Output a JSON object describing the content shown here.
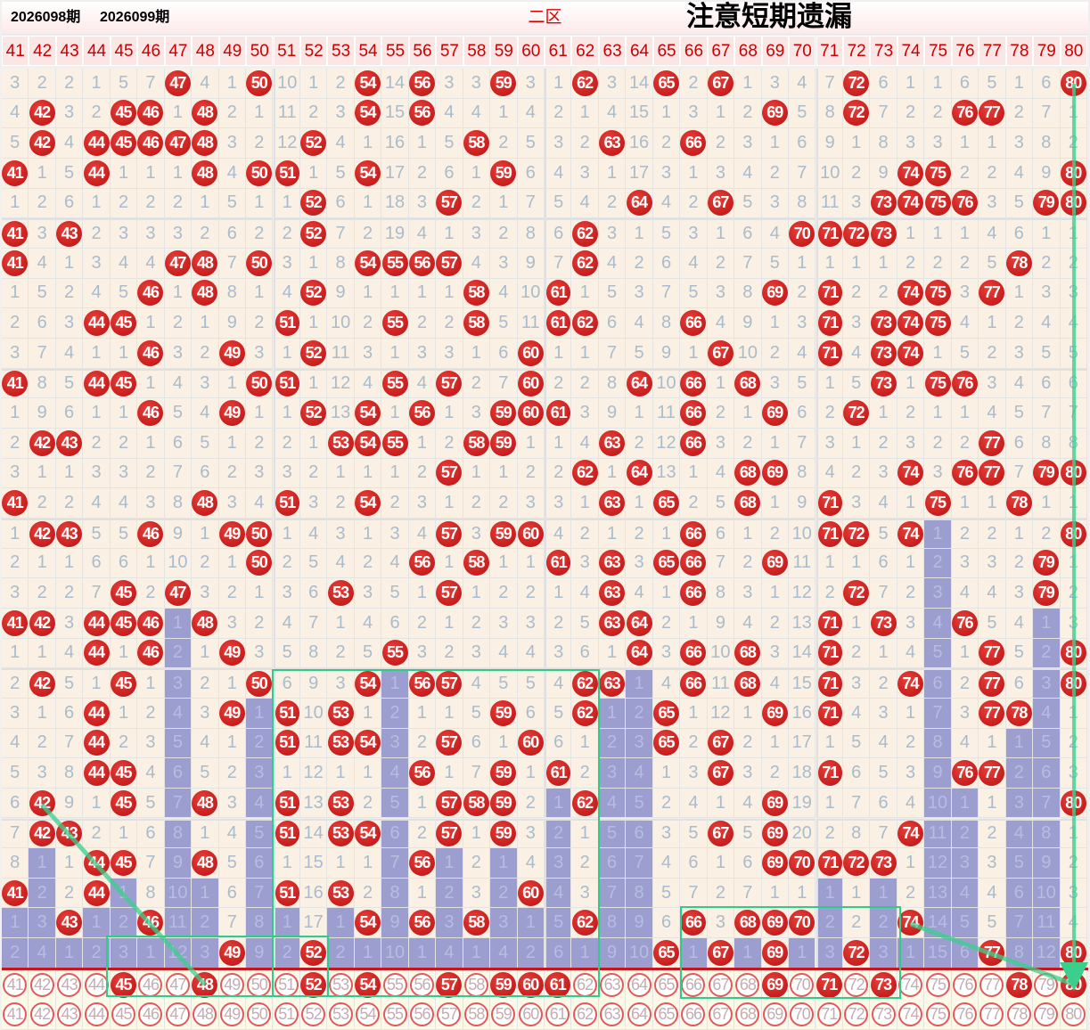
{
  "title": "二区",
  "columns": [
    41,
    42,
    43,
    44,
    45,
    46,
    47,
    48,
    49,
    50,
    51,
    52,
    53,
    54,
    55,
    56,
    57,
    58,
    59,
    60,
    61,
    62,
    63,
    64,
    65,
    66,
    67,
    68,
    69,
    70,
    71,
    72,
    73,
    74,
    75,
    76,
    77,
    78,
    79,
    80
  ],
  "colors": {
    "hit": "#d92b2b",
    "miss_text": "#a9bccd",
    "streak": "#9c9ecf",
    "cell_bg": "#faf0e3",
    "overlay": "#2ecc8a",
    "divider": "#c8161d"
  },
  "rows": [
    [
      3,
      2,
      2,
      1,
      5,
      7,
      47,
      4,
      1,
      50,
      10,
      1,
      2,
      54,
      14,
      56,
      3,
      3,
      59,
      3,
      1,
      62,
      3,
      14,
      65,
      2,
      67,
      1,
      3,
      4,
      7,
      72,
      6,
      1,
      1,
      6,
      5,
      1,
      6,
      80
    ],
    [
      4,
      42,
      3,
      2,
      45,
      46,
      1,
      48,
      2,
      1,
      11,
      2,
      3,
      54,
      15,
      56,
      4,
      4,
      1,
      4,
      2,
      1,
      4,
      15,
      1,
      3,
      1,
      2,
      69,
      5,
      8,
      72,
      7,
      2,
      2,
      76,
      77,
      2,
      7,
      1
    ],
    [
      5,
      42,
      4,
      44,
      45,
      46,
      47,
      48,
      3,
      2,
      12,
      52,
      4,
      1,
      16,
      1,
      5,
      58,
      2,
      5,
      3,
      2,
      63,
      16,
      2,
      66,
      2,
      3,
      1,
      6,
      9,
      1,
      8,
      3,
      3,
      1,
      1,
      3,
      8,
      2
    ],
    [
      41,
      1,
      5,
      44,
      1,
      1,
      1,
      48,
      4,
      50,
      51,
      1,
      5,
      54,
      17,
      2,
      6,
      1,
      59,
      6,
      4,
      3,
      1,
      17,
      3,
      1,
      3,
      4,
      2,
      7,
      10,
      2,
      9,
      74,
      75,
      2,
      2,
      4,
      9,
      80
    ],
    [
      1,
      2,
      6,
      1,
      2,
      2,
      2,
      1,
      5,
      1,
      1,
      52,
      6,
      1,
      18,
      3,
      57,
      2,
      1,
      7,
      5,
      4,
      2,
      64,
      4,
      2,
      67,
      5,
      3,
      8,
      11,
      3,
      73,
      74,
      75,
      76,
      3,
      5,
      79,
      80
    ],
    [
      41,
      3,
      43,
      2,
      3,
      3,
      3,
      2,
      6,
      2,
      2,
      52,
      7,
      2,
      19,
      4,
      1,
      3,
      2,
      8,
      6,
      62,
      3,
      1,
      5,
      3,
      1,
      6,
      4,
      70,
      71,
      72,
      73,
      1,
      1,
      1,
      4,
      6,
      1,
      1
    ],
    [
      41,
      4,
      1,
      3,
      4,
      4,
      47,
      48,
      7,
      50,
      3,
      1,
      8,
      54,
      55,
      56,
      57,
      4,
      3,
      9,
      7,
      62,
      4,
      2,
      6,
      4,
      2,
      7,
      5,
      1,
      1,
      1,
      1,
      2,
      2,
      2,
      5,
      78,
      2,
      2
    ],
    [
      1,
      5,
      2,
      4,
      5,
      46,
      1,
      48,
      8,
      1,
      4,
      52,
      9,
      1,
      1,
      1,
      1,
      58,
      4,
      10,
      61,
      1,
      5,
      3,
      7,
      5,
      3,
      8,
      69,
      2,
      71,
      2,
      2,
      74,
      75,
      3,
      77,
      1,
      3,
      3
    ],
    [
      2,
      6,
      3,
      44,
      45,
      1,
      2,
      1,
      9,
      2,
      51,
      1,
      10,
      2,
      55,
      2,
      2,
      58,
      5,
      11,
      61,
      62,
      6,
      4,
      8,
      66,
      4,
      9,
      1,
      3,
      71,
      3,
      73,
      74,
      75,
      4,
      1,
      2,
      4,
      4
    ],
    [
      3,
      7,
      4,
      1,
      1,
      46,
      3,
      2,
      49,
      3,
      1,
      52,
      11,
      3,
      1,
      3,
      3,
      1,
      6,
      60,
      1,
      1,
      7,
      5,
      9,
      1,
      67,
      10,
      2,
      4,
      71,
      4,
      73,
      74,
      1,
      5,
      2,
      3,
      5,
      5
    ],
    [
      41,
      8,
      5,
      44,
      45,
      1,
      4,
      3,
      1,
      50,
      51,
      1,
      12,
      4,
      55,
      4,
      57,
      2,
      7,
      60,
      2,
      2,
      8,
      64,
      10,
      66,
      1,
      68,
      3,
      5,
      1,
      5,
      73,
      1,
      75,
      76,
      3,
      4,
      6,
      6
    ],
    [
      1,
      9,
      6,
      1,
      1,
      46,
      5,
      4,
      49,
      1,
      1,
      52,
      13,
      54,
      1,
      56,
      1,
      3,
      59,
      60,
      61,
      3,
      9,
      1,
      11,
      66,
      2,
      1,
      69,
      6,
      2,
      72,
      1,
      2,
      1,
      1,
      4,
      5,
      7,
      7
    ],
    [
      2,
      42,
      43,
      2,
      2,
      1,
      6,
      5,
      1,
      2,
      2,
      1,
      53,
      54,
      55,
      1,
      2,
      58,
      59,
      1,
      1,
      4,
      63,
      2,
      12,
      66,
      3,
      2,
      1,
      7,
      3,
      1,
      2,
      3,
      2,
      2,
      77,
      6,
      8,
      8
    ],
    [
      3,
      1,
      1,
      3,
      3,
      2,
      7,
      6,
      2,
      3,
      3,
      2,
      1,
      1,
      1,
      2,
      57,
      1,
      1,
      2,
      2,
      62,
      1,
      64,
      13,
      1,
      4,
      68,
      69,
      8,
      4,
      2,
      3,
      74,
      3,
      76,
      77,
      7,
      79,
      80
    ],
    [
      41,
      2,
      2,
      4,
      4,
      3,
      8,
      48,
      3,
      4,
      51,
      3,
      2,
      54,
      2,
      3,
      1,
      2,
      2,
      3,
      3,
      1,
      63,
      1,
      65,
      2,
      5,
      68,
      1,
      9,
      71,
      3,
      4,
      1,
      75,
      1,
      1,
      78,
      1,
      1
    ],
    [
      1,
      42,
      43,
      5,
      5,
      46,
      9,
      1,
      49,
      50,
      1,
      4,
      3,
      1,
      3,
      4,
      57,
      3,
      59,
      60,
      4,
      2,
      1,
      2,
      1,
      66,
      6,
      1,
      2,
      10,
      71,
      72,
      5,
      74,
      1,
      2,
      2,
      1,
      2,
      80
    ],
    [
      2,
      1,
      1,
      6,
      6,
      1,
      10,
      2,
      1,
      50,
      2,
      5,
      4,
      2,
      4,
      56,
      1,
      58,
      1,
      1,
      61,
      3,
      63,
      3,
      65,
      66,
      7,
      2,
      69,
      11,
      1,
      1,
      6,
      1,
      2,
      3,
      3,
      2,
      79,
      1
    ],
    [
      3,
      2,
      2,
      7,
      45,
      2,
      47,
      3,
      2,
      1,
      3,
      6,
      53,
      3,
      5,
      1,
      57,
      1,
      2,
      2,
      1,
      4,
      63,
      4,
      1,
      66,
      8,
      3,
      1,
      12,
      2,
      72,
      7,
      2,
      3,
      4,
      4,
      3,
      79,
      2
    ],
    [
      41,
      42,
      3,
      44,
      45,
      46,
      1,
      48,
      3,
      2,
      4,
      7,
      1,
      4,
      6,
      2,
      1,
      2,
      3,
      3,
      2,
      5,
      63,
      64,
      2,
      1,
      9,
      4,
      2,
      13,
      71,
      1,
      73,
      3,
      4,
      76,
      5,
      4,
      1,
      3
    ],
    [
      1,
      1,
      4,
      44,
      1,
      46,
      2,
      1,
      49,
      3,
      5,
      8,
      2,
      5,
      55,
      3,
      2,
      3,
      4,
      4,
      3,
      6,
      1,
      64,
      3,
      66,
      10,
      68,
      3,
      14,
      71,
      2,
      1,
      4,
      5,
      1,
      77,
      5,
      2,
      80
    ],
    [
      2,
      42,
      5,
      1,
      45,
      1,
      3,
      2,
      1,
      50,
      6,
      9,
      3,
      54,
      1,
      56,
      57,
      4,
      5,
      5,
      4,
      62,
      63,
      1,
      4,
      66,
      11,
      68,
      4,
      15,
      71,
      3,
      2,
      74,
      6,
      2,
      77,
      6,
      3,
      80
    ],
    [
      3,
      1,
      6,
      44,
      1,
      2,
      4,
      3,
      49,
      1,
      51,
      10,
      53,
      1,
      2,
      1,
      1,
      5,
      59,
      6,
      5,
      62,
      1,
      2,
      65,
      1,
      12,
      1,
      69,
      16,
      71,
      4,
      3,
      1,
      7,
      3,
      77,
      78,
      4,
      1
    ],
    [
      4,
      2,
      7,
      44,
      2,
      3,
      5,
      4,
      1,
      2,
      51,
      11,
      53,
      54,
      3,
      2,
      57,
      6,
      1,
      60,
      6,
      1,
      2,
      3,
      65,
      2,
      67,
      2,
      1,
      17,
      1,
      5,
      4,
      2,
      8,
      4,
      1,
      1,
      5,
      2
    ],
    [
      5,
      3,
      8,
      44,
      45,
      4,
      6,
      5,
      2,
      3,
      1,
      12,
      1,
      1,
      4,
      56,
      1,
      7,
      59,
      1,
      61,
      2,
      3,
      4,
      1,
      3,
      67,
      3,
      2,
      18,
      71,
      6,
      5,
      3,
      9,
      76,
      77,
      2,
      6,
      3
    ],
    [
      6,
      42,
      9,
      1,
      45,
      5,
      7,
      48,
      3,
      4,
      51,
      13,
      53,
      2,
      5,
      1,
      57,
      58,
      59,
      2,
      1,
      62,
      4,
      5,
      2,
      4,
      1,
      4,
      69,
      19,
      1,
      7,
      6,
      4,
      10,
      1,
      1,
      3,
      7,
      80
    ],
    [
      7,
      42,
      43,
      2,
      1,
      6,
      8,
      1,
      4,
      5,
      51,
      14,
      53,
      54,
      6,
      2,
      57,
      1,
      59,
      3,
      2,
      1,
      5,
      6,
      3,
      5,
      67,
      5,
      69,
      20,
      2,
      8,
      7,
      74,
      11,
      2,
      2,
      4,
      8,
      1
    ],
    [
      8,
      1,
      1,
      44,
      45,
      7,
      9,
      48,
      5,
      6,
      1,
      15,
      1,
      1,
      7,
      56,
      1,
      2,
      1,
      4,
      3,
      2,
      6,
      7,
      4,
      6,
      1,
      6,
      69,
      70,
      71,
      72,
      73,
      1,
      12,
      3,
      3,
      5,
      9,
      2
    ],
    [
      41,
      2,
      2,
      44,
      1,
      8,
      10,
      1,
      6,
      7,
      51,
      16,
      53,
      2,
      8,
      1,
      2,
      3,
      2,
      60,
      4,
      3,
      7,
      8,
      5,
      7,
      2,
      7,
      1,
      1,
      1,
      1,
      1,
      2,
      13,
      4,
      4,
      6,
      10,
      3
    ],
    [
      1,
      3,
      43,
      1,
      2,
      46,
      11,
      2,
      7,
      8,
      1,
      17,
      1,
      54,
      9,
      56,
      3,
      58,
      3,
      1,
      5,
      62,
      8,
      9,
      6,
      66,
      3,
      68,
      69,
      70,
      2,
      2,
      2,
      74,
      14,
      5,
      5,
      7,
      11,
      4
    ],
    [
      2,
      4,
      1,
      2,
      3,
      1,
      12,
      3,
      49,
      9,
      2,
      52,
      2,
      1,
      10,
      1,
      4,
      1,
      4,
      2,
      6,
      1,
      9,
      10,
      65,
      1,
      67,
      1,
      69,
      1,
      3,
      72,
      3,
      1,
      15,
      6,
      77,
      8,
      12,
      80
    ]
  ],
  "period_current": "2026098期",
  "period_next": "2026099期",
  "prediction_selected": [
    45,
    48,
    52,
    54,
    57,
    59,
    60,
    61,
    69,
    71,
    73,
    78,
    80
  ],
  "note": "注意短期遗漏"
}
